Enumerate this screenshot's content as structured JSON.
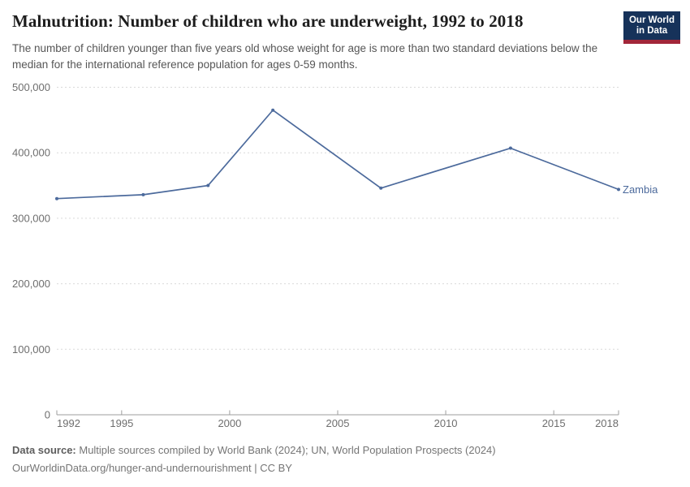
{
  "header": {
    "title": "Malnutrition: Number of children who are underweight, 1992 to 2018",
    "logo": {
      "line1": "Our World",
      "line2": "in Data"
    }
  },
  "subtitle": "The number of children younger than five years old whose weight for age is more than two standard deviations below the median for the international reference population for ages 0-59 months.",
  "chart_data": {
    "type": "line",
    "title": "Malnutrition: Number of children who are underweight, 1992 to 2018",
    "series": [
      {
        "name": "Zambia",
        "color": "#4c6a9c",
        "x": [
          1992,
          1996,
          1999,
          2002,
          2007,
          2013,
          2018
        ],
        "values": [
          330000,
          336000,
          350000,
          465000,
          346000,
          407000,
          344000
        ]
      }
    ],
    "xlim": [
      1992,
      2018
    ],
    "ylim": [
      0,
      500000
    ],
    "xticks": [
      1992,
      1995,
      2000,
      2005,
      2010,
      2015,
      2018
    ],
    "yticks": [
      0,
      100000,
      200000,
      300000,
      400000,
      500000
    ],
    "ytick_labels": [
      "0",
      "100,000",
      "200,000",
      "300,000",
      "400,000",
      "500,000"
    ],
    "grid": "horizontal-dashed",
    "legend_position": "line-end-label"
  },
  "footer": {
    "datasource_label": "Data source:",
    "datasource_text": " Multiple sources compiled by World Bank (2024); UN, World Population Prospects (2024)",
    "license_line": "OurWorldinData.org/hunger-and-undernourishment | CC BY"
  },
  "colors": {
    "line": "#4c6a9c",
    "logo_background": "#16325a",
    "logo_bar": "#a22639",
    "gridline": "#d9d9d9",
    "axis": "#9e9e9e"
  }
}
